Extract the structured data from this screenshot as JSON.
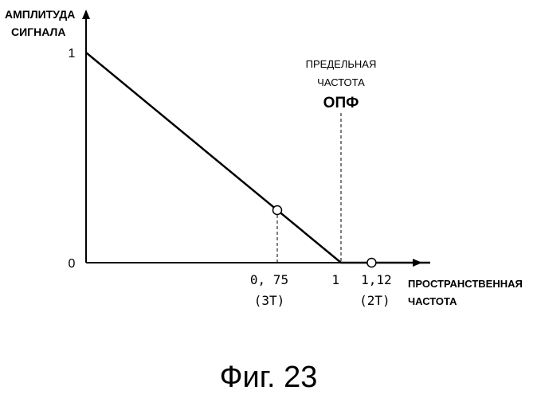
{
  "chart_data": {
    "type": "line",
    "ylabel_lines": [
      "АМПЛИТУДА",
      "СИГНАЛА"
    ],
    "xlabel_lines": [
      "ПРОСТРАНСТВЕННАЯ",
      "ЧАСТОТА"
    ],
    "x_ticks": [
      {
        "value": 0.75,
        "label": "0, 75",
        "sublabel": "(3T)"
      },
      {
        "value": 1,
        "label": "1"
      },
      {
        "value": 1.12,
        "label": "1,12",
        "sublabel": "(2T)"
      }
    ],
    "y_ticks": [
      {
        "value": 0,
        "label": "0"
      },
      {
        "value": 1,
        "label": "1"
      }
    ],
    "series": [
      {
        "x": [
          0,
          1,
          1.35
        ],
        "y": [
          1,
          0,
          0
        ]
      }
    ],
    "markers": [
      {
        "x": 0.75,
        "y": 0.25
      },
      {
        "x": 1.12,
        "y": 0
      }
    ],
    "cutoff": {
      "x": 1,
      "label_lines": [
        "ПРЕДЕЛЬНАЯ",
        "ЧАСТОТА"
      ],
      "label_bold": "ОПФ"
    },
    "xlim": [
      0,
      1.35
    ],
    "ylim": [
      0,
      1.1
    ],
    "grid": false,
    "caption": "Фиг. 23"
  }
}
